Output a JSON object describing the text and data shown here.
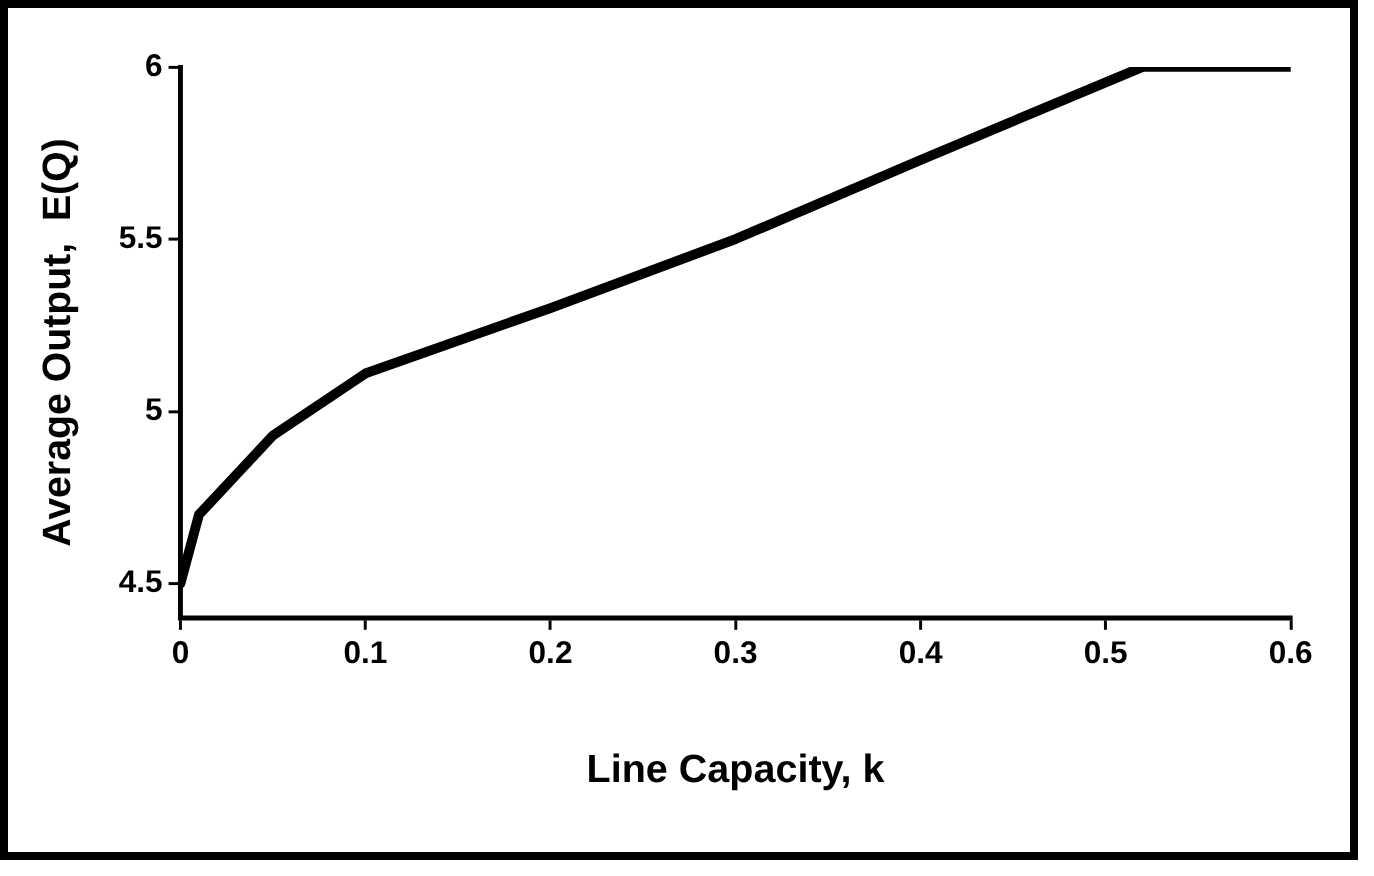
{
  "chart_data": {
    "type": "line",
    "xlabel": "Line Capacity, k",
    "ylabel": "Average Output,  E(Q)",
    "x": [
      0,
      0.01,
      0.05,
      0.1,
      0.2,
      0.3,
      0.4,
      0.52,
      0.6
    ],
    "series": [
      {
        "color": "#000000",
        "values": [
          4.5,
          4.7,
          4.93,
          5.11,
          5.3,
          5.5,
          5.73,
          6.0,
          6.0
        ]
      }
    ],
    "xlim": [
      0,
      0.6
    ],
    "xticks": [
      0,
      0.1,
      0.2,
      0.3,
      0.4,
      0.5,
      0.6
    ],
    "ylim": [
      4.4,
      6
    ],
    "yticks": [
      4.5,
      5,
      5.5,
      6
    ],
    "grid": false,
    "legend": false,
    "marker": "none",
    "line_style": "solid"
  }
}
